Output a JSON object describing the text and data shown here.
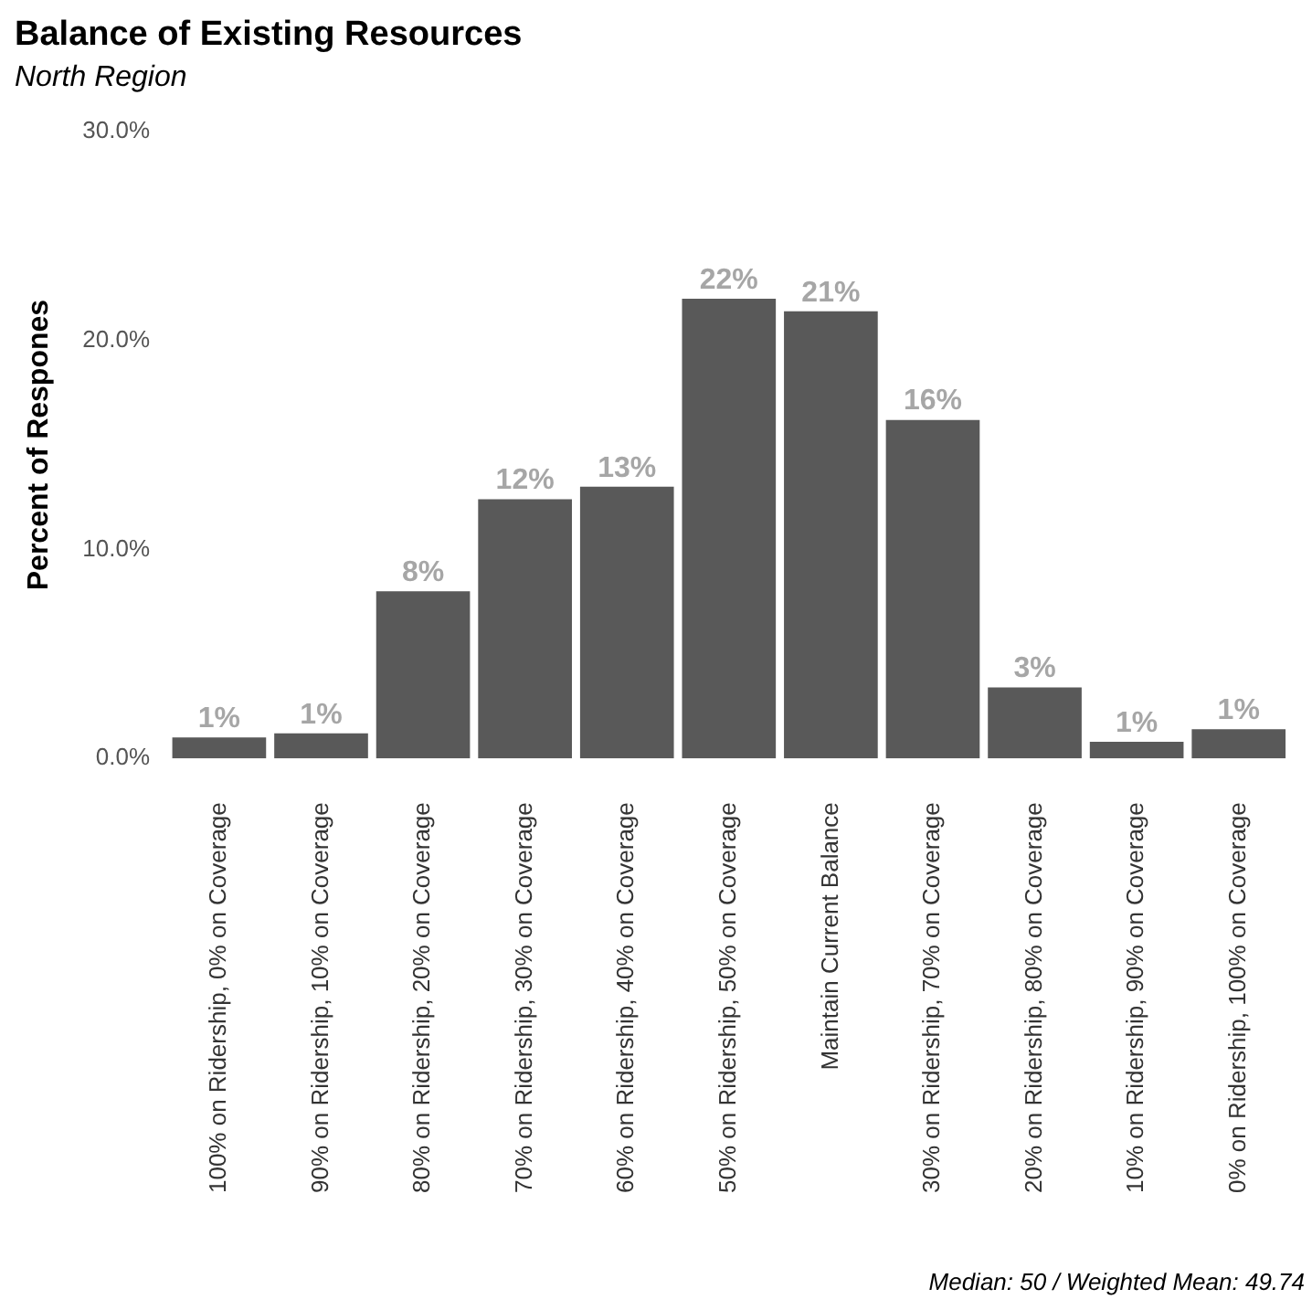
{
  "chart_data": {
    "type": "bar",
    "title": "Balance of Existing Resources",
    "subtitle": "North Region",
    "ylabel": "Percent of Respones",
    "categories": [
      "100% on Ridership, 0% on Coverage",
      "90% on Ridership, 10% on Coverage",
      "80% on Ridership, 20% on Coverage",
      "70% on Ridership, 30% on Coverage",
      "60% on Ridership, 40% on Coverage",
      "50% on Ridership, 50% on Coverage",
      "Maintain Current Balance",
      "30% on Ridership, 70% on Coverage",
      "20% on Ridership, 80% on Coverage",
      "10% on Ridership, 90% on Coverage",
      "0% on Ridership, 100% on Coverage"
    ],
    "values": [
      1.0,
      1.2,
      8.0,
      12.4,
      13.0,
      22.0,
      21.4,
      16.2,
      3.4,
      0.8,
      1.4
    ],
    "value_labels": [
      "1%",
      "1%",
      "8%",
      "12%",
      "13%",
      "22%",
      "21%",
      "16%",
      "3%",
      "1%",
      "1%"
    ],
    "color": "#595959",
    "ylim": [
      0,
      30
    ],
    "yticks": [
      {
        "value": 0,
        "label": "0.0%"
      },
      {
        "value": 10,
        "label": "10.0%"
      },
      {
        "value": 20,
        "label": "20.0%"
      },
      {
        "value": 30,
        "label": "30.0%"
      }
    ],
    "grid": false,
    "legend": false,
    "annotations": [
      "Median: 50 / Weighted Mean: 49.74"
    ]
  }
}
